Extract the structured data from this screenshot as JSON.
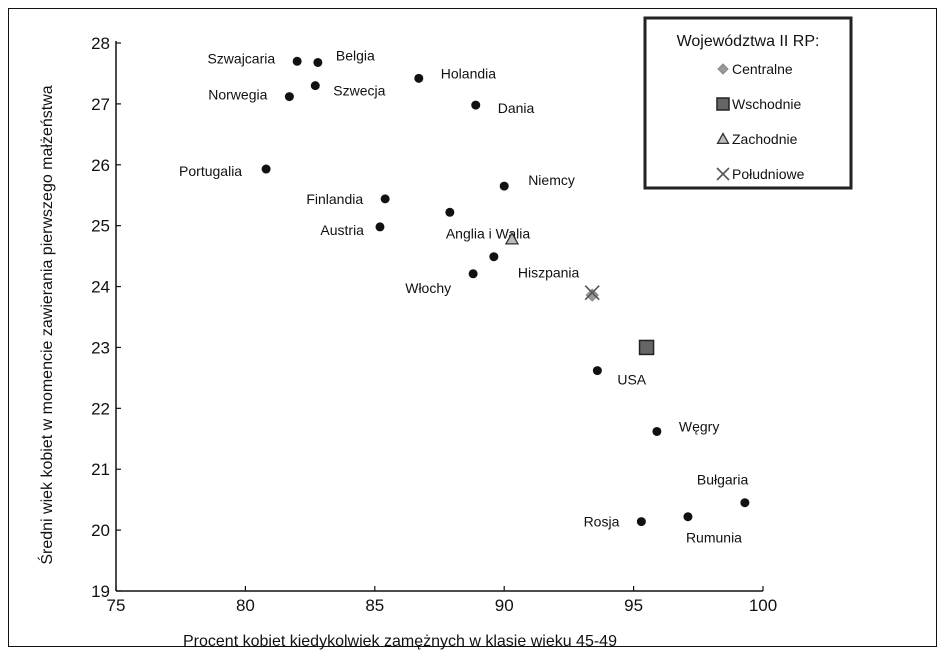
{
  "chart_data": {
    "type": "scatter",
    "title": "",
    "xlabel": "Procent kobiet kiedykolwiek zamężnych  w klasie wieku 45-49",
    "ylabel": "Średni wiek kobiet  w momencie  zawierania pierwszego małżeństwa",
    "xlim": [
      75,
      100
    ],
    "ylim": [
      19,
      28
    ],
    "xticks": [
      "75",
      "80",
      "85",
      "90",
      "95",
      "100"
    ],
    "yticks": [
      "19",
      "20",
      "21",
      "22",
      "23",
      "24",
      "25",
      "26",
      "27",
      "28"
    ],
    "grid": false,
    "countries": [
      {
        "label": "Szwajcaria",
        "x": 82.0,
        "y": 27.7
      },
      {
        "label": "Belgia",
        "x": 82.8,
        "y": 27.68
      },
      {
        "label": "Norwegia",
        "x": 81.7,
        "y": 27.12
      },
      {
        "label": "Szwecja",
        "x": 82.7,
        "y": 27.3
      },
      {
        "label": "Holandia",
        "x": 86.7,
        "y": 27.42
      },
      {
        "label": "Dania",
        "x": 88.9,
        "y": 26.98
      },
      {
        "label": "Portugalia",
        "x": 80.8,
        "y": 25.93
      },
      {
        "label": "Finlandia",
        "x": 85.4,
        "y": 25.44
      },
      {
        "label": "Niemcy",
        "x": 90.0,
        "y": 25.65
      },
      {
        "label": "Austria",
        "x": 85.2,
        "y": 24.98
      },
      {
        "label": "Anglia i Walia",
        "x": 87.9,
        "y": 25.22
      },
      {
        "label": "Hiszpania",
        "x": 89.6,
        "y": 24.49
      },
      {
        "label": "Włochy",
        "x": 88.8,
        "y": 24.21
      },
      {
        "label": "USA",
        "x": 93.6,
        "y": 22.62
      },
      {
        "label": "Węgry",
        "x": 95.9,
        "y": 21.62
      },
      {
        "label": "Bułgaria",
        "x": 99.3,
        "y": 20.45
      },
      {
        "label": "Rumunia",
        "x": 97.1,
        "y": 20.22
      },
      {
        "label": "Rosja",
        "x": 95.3,
        "y": 20.14
      }
    ],
    "legend": {
      "title": "Województwa II RP:",
      "position": "top-right",
      "entries": [
        {
          "name": "Centralne",
          "marker": "diamond",
          "color": "#999999",
          "x": 93.4,
          "y": 23.86
        },
        {
          "name": "Wschodnie",
          "marker": "square",
          "color": "#666666",
          "x": 95.5,
          "y": 23.0
        },
        {
          "name": "Zachodnie",
          "marker": "triangle",
          "color": "#bbbbbb",
          "x": 90.3,
          "y": 24.78
        },
        {
          "name": "Południowe",
          "marker": "cross",
          "color": "#555555",
          "x": 93.4,
          "y": 23.9
        }
      ]
    }
  }
}
